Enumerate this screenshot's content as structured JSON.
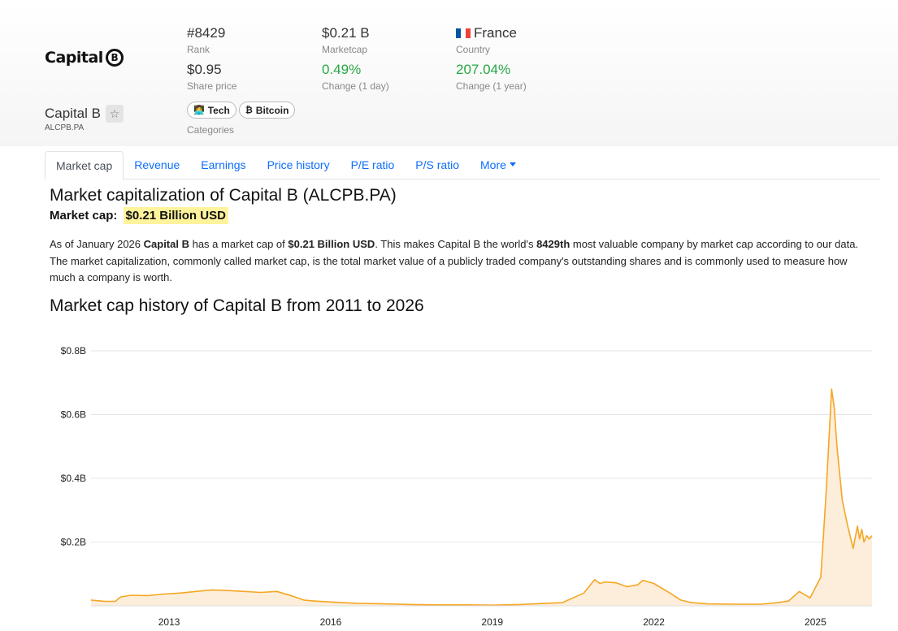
{
  "company": {
    "logo_text": "Capital",
    "logo_letter": "B",
    "name": "Capital B",
    "ticker": "ALCPB.PA",
    "star_icon": "star-outline-icon"
  },
  "stats": {
    "rank": {
      "value": "#8429",
      "label": "Rank"
    },
    "marketcap": {
      "value": "$0.21 B",
      "label": "Marketcap"
    },
    "country": {
      "value": "France",
      "label": "Country"
    },
    "share_price": {
      "value": "$0.95",
      "label": "Share price"
    },
    "change_day": {
      "value": "0.49%",
      "label": "Change (1 day)"
    },
    "change_year": {
      "value": "207.04%",
      "label": "Change (1 year)"
    }
  },
  "categories": {
    "label": "Categories",
    "items": [
      {
        "label": "Tech",
        "icon": "👩‍💻"
      },
      {
        "label": "Bitcoin",
        "icon": "₿"
      }
    ]
  },
  "tabs": [
    {
      "label": "Market cap",
      "active": true
    },
    {
      "label": "Revenue"
    },
    {
      "label": "Earnings"
    },
    {
      "label": "Price history"
    },
    {
      "label": "P/E ratio"
    },
    {
      "label": "P/S ratio"
    },
    {
      "label": "More"
    }
  ],
  "content": {
    "title": "Market capitalization of Capital B (ALCPB.PA)",
    "mc_label": "Market cap:",
    "mc_value": "$0.21 Billion USD",
    "para": {
      "t1": "As of January 2026 ",
      "b1": "Capital B",
      "t2": " has a market cap of ",
      "b2": "$0.21 Billion USD",
      "t3": ". This makes Capital B the world's ",
      "b3": "8429th",
      "t4": " most valuable company by market cap according to our data. The market capitalization, commonly called market cap, is the total market value of a publicly traded company's outstanding shares and is commonly used to measure how much a company is worth."
    },
    "chart_title": "Market cap history of Capital B from 2011 to 2026"
  },
  "chart_data": {
    "type": "area",
    "title": "Market cap history of Capital B from 2011 to 2026",
    "xlabel": "",
    "ylabel": "",
    "xlim": [
      2011.55,
      2026.05
    ],
    "ylim": [
      0,
      0.8
    ],
    "y_ticks": [
      {
        "value": 0.2,
        "label": "$0.2B"
      },
      {
        "value": 0.4,
        "label": "$0.4B"
      },
      {
        "value": 0.6,
        "label": "$0.6B"
      },
      {
        "value": 0.8,
        "label": "$0.8B"
      }
    ],
    "x_ticks": [
      {
        "value": 2013,
        "label": "2013"
      },
      {
        "value": 2016,
        "label": "2016"
      },
      {
        "value": 2019,
        "label": "2019"
      },
      {
        "value": 2022,
        "label": "2022"
      },
      {
        "value": 2025,
        "label": "2025"
      }
    ],
    "grid": true,
    "line_color": "#f5a623",
    "fill_color": "#fdeedb",
    "series": [
      {
        "x": [
          2011.55,
          2011.8,
          2012.0,
          2012.1,
          2012.3,
          2012.6,
          2012.9,
          2013.2,
          2013.5,
          2013.8,
          2014.1,
          2014.4,
          2014.7,
          2015.0,
          2015.3,
          2015.5,
          2015.7,
          2016.0,
          2016.5,
          2017.0,
          2017.5,
          2018.0,
          2018.5,
          2019.0,
          2019.5,
          2020.0,
          2020.3,
          2020.5,
          2020.7,
          2020.9,
          2021.0,
          2021.1,
          2021.3,
          2021.5,
          2021.7,
          2021.8,
          2022.0,
          2022.3,
          2022.5,
          2022.7,
          2023.0,
          2023.5,
          2024.0,
          2024.3,
          2024.5,
          2024.7,
          2024.9,
          2025.1,
          2025.2,
          2025.3,
          2025.35,
          2025.4,
          2025.5,
          2025.6,
          2025.7,
          2025.78,
          2025.82,
          2025.86,
          2025.9,
          2025.95,
          2026.0,
          2026.05
        ],
        "y": [
          0.018,
          0.014,
          0.014,
          0.028,
          0.033,
          0.032,
          0.037,
          0.04,
          0.045,
          0.05,
          0.048,
          0.045,
          0.042,
          0.045,
          0.03,
          0.018,
          0.015,
          0.012,
          0.008,
          0.006,
          0.004,
          0.003,
          0.003,
          0.002,
          0.004,
          0.008,
          0.01,
          0.025,
          0.04,
          0.082,
          0.07,
          0.075,
          0.072,
          0.06,
          0.066,
          0.08,
          0.07,
          0.04,
          0.018,
          0.01,
          0.006,
          0.005,
          0.005,
          0.01,
          0.015,
          0.045,
          0.025,
          0.09,
          0.36,
          0.68,
          0.62,
          0.5,
          0.33,
          0.25,
          0.18,
          0.25,
          0.21,
          0.24,
          0.2,
          0.22,
          0.21,
          0.22
        ]
      }
    ]
  }
}
